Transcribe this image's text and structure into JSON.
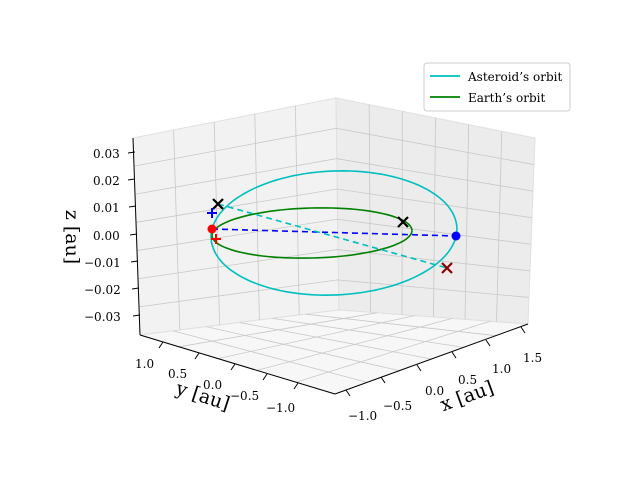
{
  "chart_data": {
    "type": "line3d",
    "title": "",
    "axes": {
      "x": {
        "label": "x [au]",
        "ticks": [
          -1.0,
          -0.5,
          0.0,
          0.5,
          1.0,
          1.5
        ],
        "tick_labels": [
          "−1.0",
          "−0.5",
          "0.0",
          "0.5",
          "1.0",
          "1.5"
        ],
        "lim": [
          -1.1,
          1.7
        ]
      },
      "y": {
        "label": "y [au]",
        "ticks": [
          1.0,
          0.5,
          0.0,
          -0.5,
          -1.0
        ],
        "tick_labels": [
          "1.0",
          "0.5",
          "0.0",
          "−0.5",
          "−1.0"
        ],
        "lim": [
          -1.3,
          1.2
        ]
      },
      "z": {
        "label": "z [au]",
        "ticks": [
          0.03,
          0.02,
          0.01,
          0.0,
          -0.01,
          -0.02,
          -0.03
        ],
        "tick_labels": [
          "0.03",
          "0.02",
          "0.01",
          "0.00",
          "−0.01",
          "−0.02",
          "−0.03"
        ],
        "lim": [
          -0.035,
          0.035
        ]
      }
    },
    "grid": true,
    "legend_position": "top-right",
    "series": [
      {
        "name": "Asteroid’s orbit",
        "color": "#00bfbf",
        "a": 1.3,
        "e": 0.2,
        "incl_max_z": 0.03
      },
      {
        "name": "Earth’s orbit",
        "color": "#008000",
        "a": 1.0,
        "e": 0.017,
        "incl_max_z": 0.0
      }
    ],
    "markers": [
      {
        "kind": "dot",
        "color": "#ff0000",
        "x": 1.0,
        "y": 0.0,
        "z": 0.0
      },
      {
        "kind": "dot",
        "color": "#0000ff",
        "x": -1.0,
        "y": 0.0,
        "z": 0.0
      },
      {
        "kind": "x",
        "color": "#000000",
        "x": 1.2,
        "y": 0.7,
        "z": 0.012
      },
      {
        "kind": "x",
        "color": "#000000",
        "x": -0.9,
        "y": -0.5,
        "z": 0.006
      },
      {
        "kind": "x",
        "color": "#8b0000",
        "x": -0.85,
        "y": -0.55,
        "z": -0.008
      },
      {
        "kind": "plus",
        "color": "#0000ff",
        "x": 1.0,
        "y": 0.5,
        "z": 0.008
      },
      {
        "kind": "plus",
        "color": "#ff0000",
        "x": 1.0,
        "y": 0.3,
        "z": -0.002
      }
    ]
  }
}
